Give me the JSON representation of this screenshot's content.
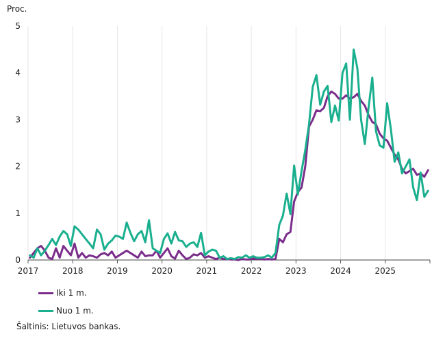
{
  "chart_data": {
    "type": "line",
    "ylabel": "Proc.",
    "ylim": [
      0,
      5
    ],
    "yticks": [
      0,
      1,
      2,
      3,
      4,
      5
    ],
    "xlim": [
      "2017-01",
      "2025-12"
    ],
    "xticks": [
      "2017",
      "2018",
      "2019",
      "2020",
      "2021",
      "2022",
      "2023",
      "2024",
      "2025"
    ],
    "grid": "vertical",
    "series": [
      {
        "name": "Iki 1 m.",
        "color": "#7b2d8b",
        "points": [
          [
            "2017-01",
            0.05
          ],
          [
            "2017-03",
            0.25
          ],
          [
            "2017-04",
            0.3
          ],
          [
            "2017-05",
            0.2
          ],
          [
            "2017-06",
            0.05
          ],
          [
            "2017-07",
            0.02
          ],
          [
            "2017-08",
            0.25
          ],
          [
            "2017-09",
            0.05
          ],
          [
            "2017-10",
            0.3
          ],
          [
            "2017-11",
            0.2
          ],
          [
            "2017-12",
            0.1
          ],
          [
            "2018-01",
            0.35
          ],
          [
            "2018-02",
            0.05
          ],
          [
            "2018-03",
            0.15
          ],
          [
            "2018-04",
            0.05
          ],
          [
            "2018-05",
            0.1
          ],
          [
            "2018-06",
            0.08
          ],
          [
            "2018-07",
            0.05
          ],
          [
            "2018-08",
            0.12
          ],
          [
            "2018-09",
            0.15
          ],
          [
            "2018-10",
            0.1
          ],
          [
            "2018-11",
            0.18
          ],
          [
            "2018-12",
            0.05
          ],
          [
            "2019-01",
            0.1
          ],
          [
            "2019-02",
            0.15
          ],
          [
            "2019-03",
            0.2
          ],
          [
            "2019-04",
            0.15
          ],
          [
            "2019-05",
            0.1
          ],
          [
            "2019-06",
            0.05
          ],
          [
            "2019-07",
            0.18
          ],
          [
            "2019-08",
            0.08
          ],
          [
            "2019-09",
            0.1
          ],
          [
            "2019-10",
            0.1
          ],
          [
            "2019-11",
            0.2
          ],
          [
            "2019-12",
            0.05
          ],
          [
            "2020-01",
            0.15
          ],
          [
            "2020-02",
            0.25
          ],
          [
            "2020-03",
            0.08
          ],
          [
            "2020-04",
            0.03
          ],
          [
            "2020-05",
            0.2
          ],
          [
            "2020-06",
            0.1
          ],
          [
            "2020-07",
            0.02
          ],
          [
            "2020-08",
            0.05
          ],
          [
            "2020-09",
            0.12
          ],
          [
            "2020-10",
            0.1
          ],
          [
            "2020-11",
            0.15
          ],
          [
            "2020-12",
            0.05
          ],
          [
            "2021-01",
            0.08
          ],
          [
            "2021-02",
            0.05
          ],
          [
            "2021-03",
            0.02
          ],
          [
            "2021-04",
            0.05
          ],
          [
            "2021-05",
            0.02
          ],
          [
            "2021-06",
            0.02
          ],
          [
            "2021-07",
            0.01
          ],
          [
            "2021-08",
            0.01
          ],
          [
            "2021-09",
            0.0
          ],
          [
            "2021-10",
            0.02
          ],
          [
            "2021-11",
            0.01
          ],
          [
            "2021-12",
            0.01
          ],
          [
            "2022-01",
            0.03
          ],
          [
            "2022-02",
            0.02
          ],
          [
            "2022-03",
            0.02
          ],
          [
            "2022-04",
            0.01
          ],
          [
            "2022-05",
            0.02
          ],
          [
            "2022-06",
            0.01
          ],
          [
            "2022-07",
            0.02
          ],
          [
            "2022-08",
            0.45
          ],
          [
            "2022-09",
            0.38
          ],
          [
            "2022-10",
            0.55
          ],
          [
            "2022-11",
            0.6
          ],
          [
            "2022-12",
            1.25
          ],
          [
            "2023-01",
            1.45
          ],
          [
            "2023-02",
            1.55
          ],
          [
            "2023-03",
            2.0
          ],
          [
            "2023-04",
            2.85
          ],
          [
            "2023-05",
            3.0
          ],
          [
            "2023-06",
            3.2
          ],
          [
            "2023-07",
            3.18
          ],
          [
            "2023-08",
            3.25
          ],
          [
            "2023-09",
            3.5
          ],
          [
            "2023-10",
            3.6
          ],
          [
            "2023-11",
            3.55
          ],
          [
            "2023-12",
            3.45
          ],
          [
            "2024-01",
            3.45
          ],
          [
            "2024-02",
            3.52
          ],
          [
            "2024-03",
            3.45
          ],
          [
            "2024-04",
            3.48
          ],
          [
            "2024-05",
            3.55
          ],
          [
            "2024-06",
            3.4
          ],
          [
            "2024-07",
            3.3
          ],
          [
            "2024-08",
            3.1
          ],
          [
            "2024-09",
            2.95
          ],
          [
            "2024-10",
            2.9
          ],
          [
            "2024-11",
            2.7
          ],
          [
            "2024-12",
            2.6
          ],
          [
            "2025-01",
            2.55
          ],
          [
            "2025-02",
            2.4
          ],
          [
            "2025-03",
            2.25
          ],
          [
            "2025-04",
            2.15
          ],
          [
            "2025-05",
            1.95
          ],
          [
            "2025-06",
            1.85
          ],
          [
            "2025-07",
            1.9
          ],
          [
            "2025-08",
            1.95
          ],
          [
            "2025-09",
            1.82
          ],
          [
            "2025-10",
            1.85
          ],
          [
            "2025-11",
            1.78
          ],
          [
            "2025-12",
            1.92
          ]
        ]
      },
      {
        "name": "Nuo 1 m.",
        "color": "#1aaf8e",
        "points": [
          [
            "2017-01",
            0.1
          ],
          [
            "2017-02",
            0.05
          ],
          [
            "2017-03",
            0.25
          ],
          [
            "2017-04",
            0.1
          ],
          [
            "2017-05",
            0.2
          ],
          [
            "2017-06",
            0.32
          ],
          [
            "2017-07",
            0.45
          ],
          [
            "2017-08",
            0.32
          ],
          [
            "2017-09",
            0.5
          ],
          [
            "2017-10",
            0.62
          ],
          [
            "2017-11",
            0.55
          ],
          [
            "2017-12",
            0.3
          ],
          [
            "2018-01",
            0.72
          ],
          [
            "2018-02",
            0.65
          ],
          [
            "2018-03",
            0.55
          ],
          [
            "2018-04",
            0.45
          ],
          [
            "2018-05",
            0.35
          ],
          [
            "2018-06",
            0.25
          ],
          [
            "2018-07",
            0.65
          ],
          [
            "2018-08",
            0.55
          ],
          [
            "2018-09",
            0.22
          ],
          [
            "2018-10",
            0.35
          ],
          [
            "2018-11",
            0.42
          ],
          [
            "2018-12",
            0.52
          ],
          [
            "2019-01",
            0.5
          ],
          [
            "2019-02",
            0.45
          ],
          [
            "2019-03",
            0.8
          ],
          [
            "2019-04",
            0.58
          ],
          [
            "2019-05",
            0.4
          ],
          [
            "2019-06",
            0.55
          ],
          [
            "2019-07",
            0.62
          ],
          [
            "2019-08",
            0.38
          ],
          [
            "2019-09",
            0.85
          ],
          [
            "2019-10",
            0.25
          ],
          [
            "2019-11",
            0.2
          ],
          [
            "2019-12",
            0.15
          ],
          [
            "2020-01",
            0.45
          ],
          [
            "2020-02",
            0.57
          ],
          [
            "2020-03",
            0.35
          ],
          [
            "2020-04",
            0.6
          ],
          [
            "2020-05",
            0.42
          ],
          [
            "2020-06",
            0.4
          ],
          [
            "2020-07",
            0.28
          ],
          [
            "2020-08",
            0.35
          ],
          [
            "2020-09",
            0.38
          ],
          [
            "2020-10",
            0.28
          ],
          [
            "2020-11",
            0.58
          ],
          [
            "2020-12",
            0.1
          ],
          [
            "2021-01",
            0.18
          ],
          [
            "2021-02",
            0.22
          ],
          [
            "2021-03",
            0.2
          ],
          [
            "2021-04",
            0.05
          ],
          [
            "2021-05",
            0.08
          ],
          [
            "2021-06",
            0.02
          ],
          [
            "2021-07",
            0.04
          ],
          [
            "2021-08",
            0.02
          ],
          [
            "2021-09",
            0.06
          ],
          [
            "2021-10",
            0.05
          ],
          [
            "2021-11",
            0.1
          ],
          [
            "2021-12",
            0.05
          ],
          [
            "2022-01",
            0.08
          ],
          [
            "2022-02",
            0.05
          ],
          [
            "2022-03",
            0.05
          ],
          [
            "2022-04",
            0.06
          ],
          [
            "2022-05",
            0.1
          ],
          [
            "2022-06",
            0.05
          ],
          [
            "2022-07",
            0.15
          ],
          [
            "2022-08",
            0.75
          ],
          [
            "2022-09",
            0.95
          ],
          [
            "2022-10",
            1.42
          ],
          [
            "2022-11",
            0.98
          ],
          [
            "2022-12",
            2.02
          ],
          [
            "2023-01",
            1.4
          ],
          [
            "2023-02",
            1.9
          ],
          [
            "2023-03",
            2.35
          ],
          [
            "2023-04",
            2.9
          ],
          [
            "2023-05",
            3.7
          ],
          [
            "2023-06",
            3.95
          ],
          [
            "2023-07",
            3.32
          ],
          [
            "2023-08",
            3.6
          ],
          [
            "2023-09",
            3.72
          ],
          [
            "2023-10",
            2.95
          ],
          [
            "2023-11",
            3.3
          ],
          [
            "2023-12",
            2.98
          ],
          [
            "2024-01",
            4.0
          ],
          [
            "2024-02",
            4.2
          ],
          [
            "2024-03",
            3.0
          ],
          [
            "2024-04",
            4.5
          ],
          [
            "2024-05",
            4.1
          ],
          [
            "2024-06",
            3.0
          ],
          [
            "2024-07",
            2.48
          ],
          [
            "2024-08",
            3.25
          ],
          [
            "2024-09",
            3.9
          ],
          [
            "2024-10",
            2.75
          ],
          [
            "2024-11",
            2.45
          ],
          [
            "2024-12",
            2.4
          ],
          [
            "2025-01",
            3.35
          ],
          [
            "2025-02",
            2.8
          ],
          [
            "2025-03",
            2.1
          ],
          [
            "2025-04",
            2.3
          ],
          [
            "2025-05",
            1.85
          ],
          [
            "2025-06",
            2.0
          ],
          [
            "2025-07",
            2.15
          ],
          [
            "2025-08",
            1.55
          ],
          [
            "2025-09",
            1.28
          ],
          [
            "2025-10",
            1.87
          ],
          [
            "2025-11",
            1.35
          ],
          [
            "2025-12",
            1.48
          ]
        ]
      }
    ]
  },
  "legend": {
    "items": [
      {
        "label": "Iki 1 m.",
        "color": "#7b2d8b"
      },
      {
        "label": "Nuo 1 m.",
        "color": "#1aaf8e"
      }
    ]
  },
  "source": "Šaltinis: Lietuvos bankas."
}
